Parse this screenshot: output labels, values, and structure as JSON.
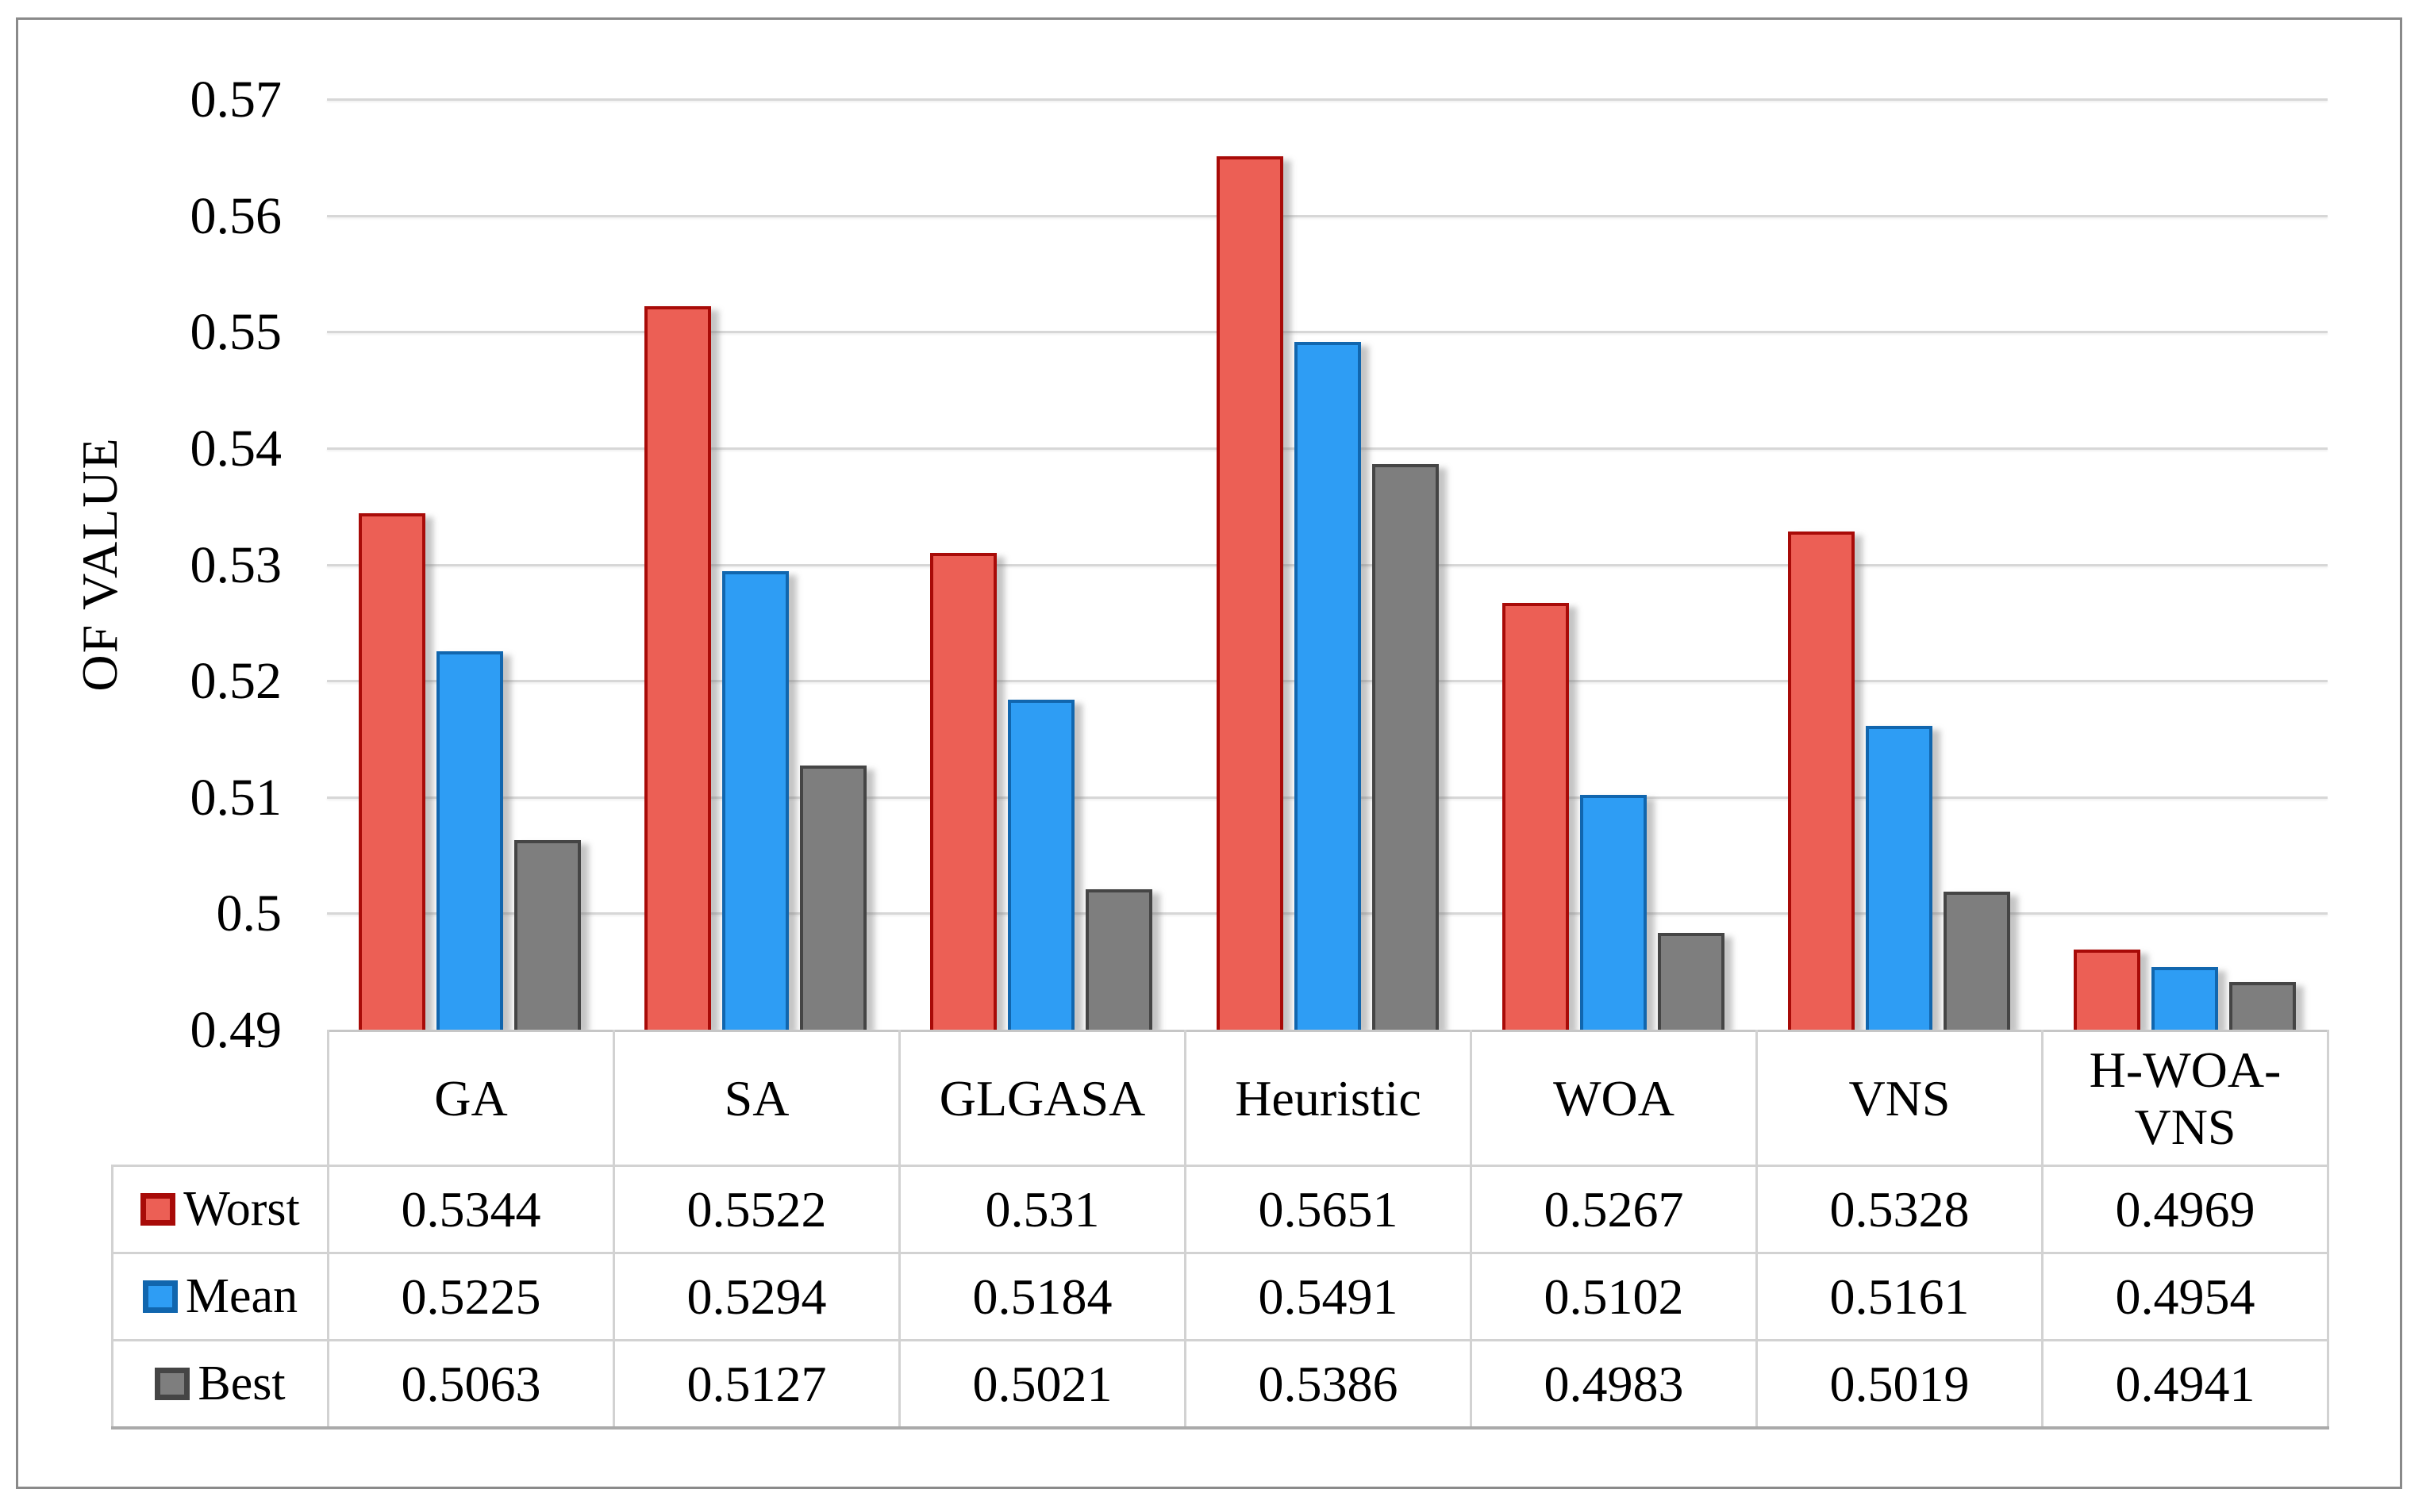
{
  "chart_data": {
    "type": "bar",
    "title": "",
    "xlabel": "",
    "ylabel": "OF VALUE",
    "ylim": [
      0.49,
      0.57
    ],
    "y_ticks": [
      "0.57",
      "0.56",
      "0.55",
      "0.54",
      "0.53",
      "0.52",
      "0.51",
      "0.5",
      "0.49"
    ],
    "grid": "horizontal-only",
    "gridline_color": "#d7d7d7",
    "legend_position": "table-rows-left",
    "categories": [
      "GA",
      "SA",
      "GLGASA",
      "Heuristic",
      "WOA",
      "VNS",
      "H-WOA-VNS"
    ],
    "series": [
      {
        "name": "Worst",
        "fill": "#ec5f55",
        "stroke": "#a80b08",
        "values": [
          0.5344,
          0.5522,
          0.531,
          0.5651,
          0.5267,
          0.5328,
          0.4969
        ]
      },
      {
        "name": "Mean",
        "fill": "#2e9df4",
        "stroke": "#1166ae",
        "values": [
          0.5225,
          0.5294,
          0.5184,
          0.5491,
          0.5102,
          0.5161,
          0.4954
        ]
      },
      {
        "name": "Best",
        "fill": "#7e7e7e",
        "stroke": "#454545",
        "values": [
          0.5063,
          0.5127,
          0.5021,
          0.5386,
          0.4983,
          0.5019,
          0.4941
        ]
      }
    ]
  },
  "figure": {
    "background": "#ffffff",
    "border_color": "#8a8a8a"
  }
}
